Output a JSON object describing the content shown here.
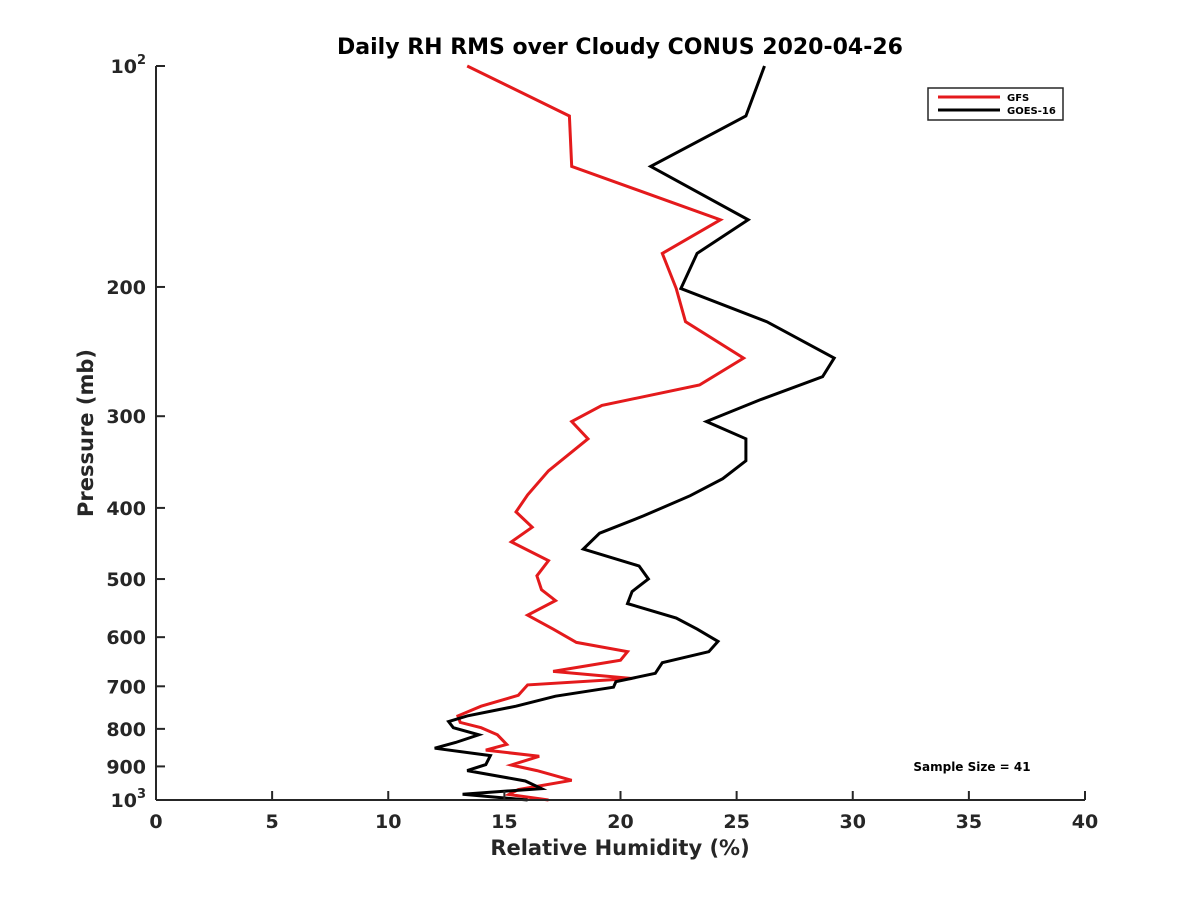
{
  "chart_data": {
    "type": "line",
    "title": "Daily RH RMS over Cloudy CONUS 2020-04-26",
    "xlabel": "Relative Humidity (%)",
    "ylabel": "Pressure (mb)",
    "xlim": [
      0,
      40
    ],
    "ylim": [
      100,
      1000
    ],
    "y_scale": "log",
    "y_reversed": true,
    "grid": false,
    "legend_position": "top-right",
    "x_ticks": [
      0,
      5,
      10,
      15,
      20,
      25,
      30,
      35,
      40
    ],
    "x_tick_labels": [
      "0",
      "5",
      "10",
      "15",
      "20",
      "25",
      "30",
      "35",
      "40"
    ],
    "y_ticks": [
      100,
      200,
      300,
      400,
      500,
      600,
      700,
      800,
      900,
      1000
    ],
    "y_tick_labels": [
      {
        "base": "10",
        "exp": "2"
      },
      {
        "base": "200",
        "exp": ""
      },
      {
        "base": "300",
        "exp": ""
      },
      {
        "base": "400",
        "exp": ""
      },
      {
        "base": "500",
        "exp": ""
      },
      {
        "base": "600",
        "exp": ""
      },
      {
        "base": "700",
        "exp": ""
      },
      {
        "base": "800",
        "exp": ""
      },
      {
        "base": "900",
        "exp": ""
      },
      {
        "base": "10",
        "exp": "3"
      }
    ],
    "annotation": "Sample Size = 41",
    "series": [
      {
        "name": "GFS",
        "color": "#e41a1c",
        "points": [
          [
            13.4,
            100
          ],
          [
            17.8,
            117
          ],
          [
            17.9,
            137
          ],
          [
            24.3,
            162
          ],
          [
            21.8,
            180
          ],
          [
            22.4,
            201
          ],
          [
            22.8,
            223
          ],
          [
            25.3,
            250
          ],
          [
            23.4,
            272
          ],
          [
            19.2,
            290
          ],
          [
            17.9,
            305
          ],
          [
            18.6,
            322
          ],
          [
            16.9,
            356
          ],
          [
            16.0,
            384
          ],
          [
            15.5,
            405
          ],
          [
            16.2,
            425
          ],
          [
            15.3,
            445
          ],
          [
            16.9,
            472
          ],
          [
            16.4,
            495
          ],
          [
            16.6,
            517
          ],
          [
            17.2,
            535
          ],
          [
            16.0,
            560
          ],
          [
            17.1,
            585
          ],
          [
            18.1,
            610
          ],
          [
            20.3,
            628
          ],
          [
            20.0,
            645
          ],
          [
            17.1,
            668
          ],
          [
            20.5,
            683
          ],
          [
            16.0,
            697
          ],
          [
            15.6,
            720
          ],
          [
            14.0,
            745
          ],
          [
            13.0,
            768
          ],
          [
            13.1,
            784
          ],
          [
            14.0,
            797
          ],
          [
            14.7,
            815
          ],
          [
            15.1,
            840
          ],
          [
            14.2,
            855
          ],
          [
            16.5,
            872
          ],
          [
            15.3,
            896
          ],
          [
            16.4,
            912
          ],
          [
            17.9,
            940
          ],
          [
            15.6,
            968
          ],
          [
            15.2,
            983
          ],
          [
            16.9,
            1000
          ]
        ]
      },
      {
        "name": "GOES-16",
        "color": "#000000",
        "points": [
          [
            26.2,
            100
          ],
          [
            25.4,
            117
          ],
          [
            21.3,
            137
          ],
          [
            25.5,
            162
          ],
          [
            23.3,
            180
          ],
          [
            22.6,
            201
          ],
          [
            26.3,
            223
          ],
          [
            29.2,
            250
          ],
          [
            28.7,
            265
          ],
          [
            26.0,
            285
          ],
          [
            23.7,
            305
          ],
          [
            25.4,
            322
          ],
          [
            25.4,
            345
          ],
          [
            24.4,
            365
          ],
          [
            23.0,
            385
          ],
          [
            21.0,
            410
          ],
          [
            19.1,
            433
          ],
          [
            18.4,
            455
          ],
          [
            20.8,
            480
          ],
          [
            21.2,
            500
          ],
          [
            20.5,
            520
          ],
          [
            20.3,
            540
          ],
          [
            22.4,
            565
          ],
          [
            23.3,
            585
          ],
          [
            24.2,
            608
          ],
          [
            23.8,
            628
          ],
          [
            21.8,
            650
          ],
          [
            21.5,
            672
          ],
          [
            19.8,
            690
          ],
          [
            19.7,
            702
          ],
          [
            17.2,
            722
          ],
          [
            15.5,
            745
          ],
          [
            13.4,
            768
          ],
          [
            12.6,
            782
          ],
          [
            12.8,
            797
          ],
          [
            13.9,
            815
          ],
          [
            12.9,
            835
          ],
          [
            12.0,
            850
          ],
          [
            14.4,
            870
          ],
          [
            14.2,
            895
          ],
          [
            13.4,
            912
          ],
          [
            15.9,
            942
          ],
          [
            16.6,
            965
          ],
          [
            13.2,
            982
          ],
          [
            16.0,
            1000
          ]
        ]
      }
    ]
  }
}
